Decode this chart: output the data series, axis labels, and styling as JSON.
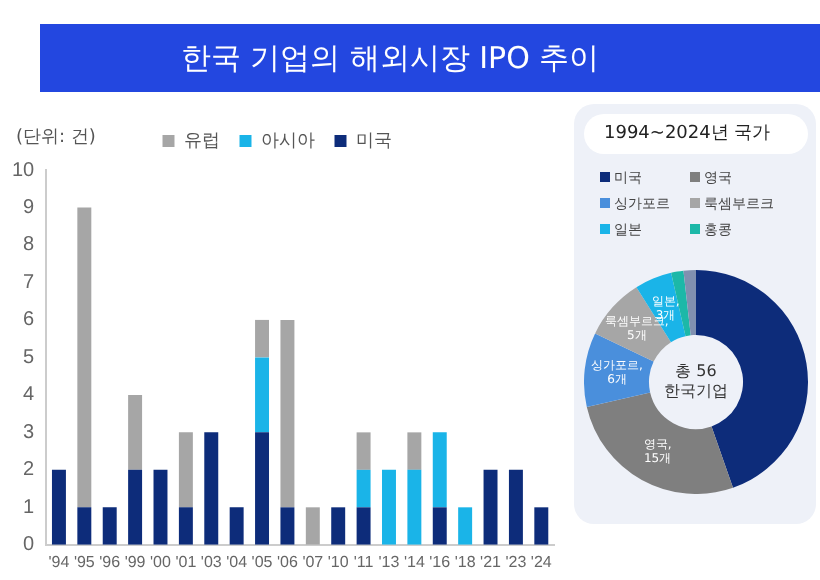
{
  "chart_data": [
    {
      "type": "bar",
      "title": "한국 기업의 해외시장 IPO 추이",
      "ylabel": "(단위: 건)",
      "stacked": true,
      "legend": "top",
      "grid": false,
      "categories": [
        "'94",
        "'95",
        "'96",
        "'99",
        "'00",
        "'01",
        "'03",
        "'04",
        "'05",
        "'06",
        "'07",
        "'10",
        "'11",
        "'13",
        "'14",
        "'16",
        "'18",
        "'21",
        "'23",
        "'24"
      ],
      "series": [
        {
          "name": "미국",
          "color": "#0d2c7a",
          "values": [
            2,
            1,
            1,
            2,
            2,
            1,
            3,
            1,
            3,
            1,
            0,
            1,
            1,
            0,
            0,
            1,
            0,
            2,
            2,
            1
          ]
        },
        {
          "name": "아시아",
          "color": "#1ab4e8",
          "values": [
            0,
            0,
            0,
            0,
            0,
            0,
            0,
            0,
            2,
            0,
            0,
            0,
            1,
            2,
            2,
            2,
            1,
            0,
            0,
            0
          ]
        },
        {
          "name": "유럽",
          "color": "#a6a6a6",
          "values": [
            0,
            8,
            0,
            2,
            0,
            2,
            0,
            0,
            1,
            5,
            1,
            0,
            1,
            0,
            1,
            0,
            0,
            0,
            0,
            0
          ]
        }
      ],
      "ylim": [
        0,
        10
      ],
      "yticks": [
        0,
        1,
        2,
        3,
        4,
        5,
        6,
        7,
        8,
        9,
        10
      ]
    },
    {
      "type": "donut",
      "title": "1994~2024년 국가",
      "legend": "top",
      "categories": [
        "미국",
        "영국",
        "싱가포르",
        "룩셈부르크",
        "일본",
        "홍콩",
        null
      ],
      "values": [
        25,
        15,
        6,
        5,
        3,
        1,
        1
      ],
      "colors": [
        "#0d2c7a",
        "#7f7f7f",
        "#4a8fdc",
        "#a6a6a6",
        "#1ab4e8",
        "#1cb8a8",
        "#8090b0"
      ],
      "value_labels": [
        null,
        "영국,\n15개",
        "싱가포르,\n6개",
        "룩셈부르크,\n5개",
        "일본,\n3개",
        null,
        null
      ],
      "annotations": [
        "총 56",
        "한국기업"
      ]
    }
  ]
}
